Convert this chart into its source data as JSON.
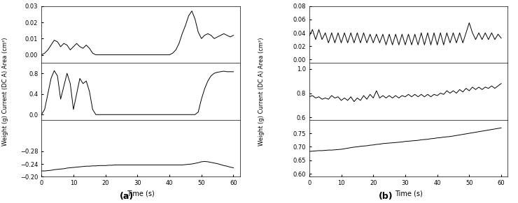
{
  "fig_width": 7.4,
  "fig_height": 2.91,
  "dpi": 100,
  "panel_a": {
    "label": "(a)",
    "xlabel": "Time (s)",
    "ylabel": "Weight (g) Current (DC A) Area (cm²)",
    "xlim": [
      0,
      62
    ],
    "xticks": [
      0,
      10,
      20,
      30,
      40,
      50,
      60
    ],
    "area": {
      "ylim": [
        -0.005,
        0.03
      ],
      "yticks": [
        0.0,
        0.01,
        0.02,
        0.03
      ],
      "data_x": [
        0,
        1,
        2,
        3,
        4,
        5,
        6,
        7,
        8,
        9,
        10,
        11,
        12,
        13,
        14,
        15,
        16,
        17,
        18,
        19,
        20,
        21,
        22,
        23,
        24,
        25,
        26,
        27,
        28,
        29,
        30,
        31,
        32,
        33,
        34,
        35,
        36,
        37,
        38,
        39,
        40,
        41,
        42,
        43,
        44,
        45,
        46,
        47,
        48,
        49,
        50,
        51,
        52,
        53,
        54,
        55,
        56,
        57,
        58,
        59,
        60
      ],
      "data_y": [
        0,
        0.001,
        0.003,
        0.006,
        0.009,
        0.008,
        0.005,
        0.007,
        0.006,
        0.003,
        0.005,
        0.007,
        0.005,
        0.004,
        0.006,
        0.004,
        0.001,
        0,
        0,
        0,
        0,
        0,
        0,
        0,
        0,
        0,
        0,
        0,
        0,
        0,
        0,
        0,
        0,
        0,
        0,
        0,
        0,
        0,
        0,
        0,
        0,
        0.001,
        0.003,
        0.007,
        0.013,
        0.018,
        0.024,
        0.027,
        0.022,
        0.014,
        0.01,
        0.012,
        0.013,
        0.012,
        0.01,
        0.011,
        0.012,
        0.013,
        0.012,
        0.011,
        0.012
      ]
    },
    "current": {
      "ylim": [
        -0.1,
        1.0
      ],
      "yticks": [
        0.0,
        0.4,
        0.8
      ],
      "data_x": [
        0,
        1,
        2,
        3,
        4,
        5,
        6,
        7,
        8,
        9,
        10,
        11,
        12,
        13,
        14,
        15,
        16,
        17,
        18,
        19,
        20,
        21,
        22,
        23,
        24,
        25,
        26,
        27,
        28,
        29,
        30,
        31,
        32,
        33,
        34,
        35,
        36,
        37,
        38,
        39,
        40,
        41,
        42,
        43,
        44,
        45,
        46,
        47,
        48,
        49,
        50,
        51,
        52,
        53,
        54,
        55,
        56,
        57,
        58,
        59,
        60
      ],
      "data_y": [
        0,
        0.1,
        0.4,
        0.7,
        0.85,
        0.75,
        0.3,
        0.55,
        0.8,
        0.6,
        0.1,
        0.4,
        0.7,
        0.6,
        0.65,
        0.45,
        0.1,
        0,
        0,
        0,
        0,
        0,
        0,
        0,
        0,
        0,
        0,
        0,
        0,
        0,
        0,
        0,
        0,
        0,
        0,
        0,
        0,
        0,
        0,
        0,
        0,
        0,
        0,
        0,
        0,
        0,
        0,
        0,
        0,
        0.05,
        0.3,
        0.5,
        0.65,
        0.75,
        0.8,
        0.82,
        0.83,
        0.84,
        0.83,
        0.83,
        0.83
      ]
    },
    "weight": {
      "ylim": [
        -0.29,
        -0.38
      ],
      "yticks": [
        -0.28,
        -0.24,
        -0.2
      ],
      "data_x": [
        0,
        1,
        2,
        3,
        4,
        5,
        6,
        7,
        8,
        9,
        10,
        11,
        12,
        13,
        14,
        15,
        16,
        17,
        18,
        19,
        20,
        21,
        22,
        23,
        24,
        25,
        26,
        27,
        28,
        29,
        30,
        31,
        32,
        33,
        34,
        35,
        36,
        37,
        38,
        39,
        40,
        41,
        42,
        43,
        44,
        45,
        46,
        47,
        48,
        49,
        50,
        51,
        52,
        53,
        54,
        55,
        56,
        57,
        58,
        59,
        60
      ],
      "data_y": [
        -0.218,
        -0.218,
        -0.219,
        -0.22,
        -0.222,
        -0.223,
        -0.224,
        -0.225,
        -0.227,
        -0.228,
        -0.229,
        -0.23,
        -0.231,
        -0.232,
        -0.233,
        -0.233,
        -0.234,
        -0.234,
        -0.235,
        -0.235,
        -0.235,
        -0.236,
        -0.236,
        -0.237,
        -0.237,
        -0.237,
        -0.237,
        -0.237,
        -0.237,
        -0.237,
        -0.237,
        -0.237,
        -0.237,
        -0.237,
        -0.237,
        -0.237,
        -0.237,
        -0.237,
        -0.237,
        -0.237,
        -0.237,
        -0.237,
        -0.237,
        -0.237,
        -0.237,
        -0.238,
        -0.239,
        -0.24,
        -0.242,
        -0.244,
        -0.247,
        -0.248,
        -0.247,
        -0.245,
        -0.243,
        -0.241,
        -0.238,
        -0.235,
        -0.233,
        -0.23,
        -0.228
      ]
    }
  },
  "panel_b": {
    "label": "(b)",
    "xlabel": "Time (s)",
    "ylabel": "Weight (g) Current (DC A) Area (cm²)",
    "xlim": [
      0,
      62
    ],
    "xticks": [
      0,
      10,
      20,
      30,
      40,
      50,
      60
    ],
    "area": {
      "ylim": [
        -0.005,
        0.08
      ],
      "yticks": [
        0.0,
        0.02,
        0.04,
        0.06,
        0.08
      ],
      "data_x": [
        0,
        1,
        2,
        3,
        4,
        5,
        6,
        7,
        8,
        9,
        10,
        11,
        12,
        13,
        14,
        15,
        16,
        17,
        18,
        19,
        20,
        21,
        22,
        23,
        24,
        25,
        26,
        27,
        28,
        29,
        30,
        31,
        32,
        33,
        34,
        35,
        36,
        37,
        38,
        39,
        40,
        41,
        42,
        43,
        44,
        45,
        46,
        47,
        48,
        49,
        50,
        51,
        52,
        53,
        54,
        55,
        56,
        57,
        58,
        59,
        60
      ],
      "data_y": [
        0.035,
        0.045,
        0.03,
        0.045,
        0.03,
        0.04,
        0.025,
        0.04,
        0.025,
        0.04,
        0.025,
        0.04,
        0.025,
        0.04,
        0.025,
        0.04,
        0.025,
        0.04,
        0.025,
        0.038,
        0.025,
        0.038,
        0.025,
        0.038,
        0.022,
        0.038,
        0.022,
        0.038,
        0.022,
        0.038,
        0.022,
        0.038,
        0.022,
        0.038,
        0.022,
        0.04,
        0.022,
        0.04,
        0.022,
        0.04,
        0.022,
        0.04,
        0.022,
        0.04,
        0.025,
        0.04,
        0.025,
        0.04,
        0.025,
        0.04,
        0.055,
        0.04,
        0.03,
        0.04,
        0.03,
        0.04,
        0.03,
        0.04,
        0.03,
        0.038,
        0.032
      ]
    },
    "current": {
      "ylim": [
        0.58,
        1.05
      ],
      "yticks": [
        0.6,
        0.8,
        1.0
      ],
      "data_x": [
        0,
        1,
        2,
        3,
        4,
        5,
        6,
        7,
        8,
        9,
        10,
        11,
        12,
        13,
        14,
        15,
        16,
        17,
        18,
        19,
        20,
        21,
        22,
        23,
        24,
        25,
        26,
        27,
        28,
        29,
        30,
        31,
        32,
        33,
        34,
        35,
        36,
        37,
        38,
        39,
        40,
        41,
        42,
        43,
        44,
        45,
        46,
        47,
        48,
        49,
        50,
        51,
        52,
        53,
        54,
        55,
        56,
        57,
        58,
        59,
        60
      ],
      "data_y": [
        0.77,
        0.78,
        0.76,
        0.77,
        0.75,
        0.76,
        0.75,
        0.78,
        0.76,
        0.77,
        0.74,
        0.76,
        0.74,
        0.77,
        0.73,
        0.76,
        0.74,
        0.78,
        0.75,
        0.79,
        0.76,
        0.82,
        0.76,
        0.78,
        0.76,
        0.78,
        0.76,
        0.78,
        0.76,
        0.78,
        0.77,
        0.79,
        0.77,
        0.79,
        0.77,
        0.79,
        0.77,
        0.79,
        0.77,
        0.79,
        0.78,
        0.8,
        0.79,
        0.82,
        0.8,
        0.82,
        0.8,
        0.83,
        0.81,
        0.84,
        0.82,
        0.85,
        0.83,
        0.85,
        0.83,
        0.85,
        0.84,
        0.86,
        0.84,
        0.86,
        0.88
      ]
    },
    "weight": {
      "ylim": [
        0.59,
        0.8
      ],
      "yticks": [
        0.6,
        0.65,
        0.7,
        0.75
      ],
      "data_x": [
        0,
        1,
        2,
        3,
        4,
        5,
        6,
        7,
        8,
        9,
        10,
        11,
        12,
        13,
        14,
        15,
        16,
        17,
        18,
        19,
        20,
        21,
        22,
        23,
        24,
        25,
        26,
        27,
        28,
        29,
        30,
        31,
        32,
        33,
        34,
        35,
        36,
        37,
        38,
        39,
        40,
        41,
        42,
        43,
        44,
        45,
        46,
        47,
        48,
        49,
        50,
        51,
        52,
        53,
        54,
        55,
        56,
        57,
        58,
        59,
        60
      ],
      "data_y": [
        0.683,
        0.684,
        0.685,
        0.686,
        0.686,
        0.687,
        0.688,
        0.688,
        0.689,
        0.69,
        0.691,
        0.693,
        0.695,
        0.697,
        0.699,
        0.7,
        0.702,
        0.703,
        0.704,
        0.706,
        0.707,
        0.709,
        0.71,
        0.712,
        0.713,
        0.714,
        0.715,
        0.716,
        0.717,
        0.718,
        0.72,
        0.721,
        0.722,
        0.723,
        0.724,
        0.726,
        0.727,
        0.728,
        0.73,
        0.731,
        0.733,
        0.734,
        0.736,
        0.737,
        0.738,
        0.74,
        0.742,
        0.744,
        0.746,
        0.748,
        0.75,
        0.752,
        0.754,
        0.756,
        0.758,
        0.76,
        0.762,
        0.764,
        0.766,
        0.768,
        0.77
      ]
    }
  },
  "line_color": "#000000",
  "background_color": "#ffffff",
  "tick_fontsize": 6,
  "label_fontsize": 6,
  "panel_label_fontsize": 9
}
